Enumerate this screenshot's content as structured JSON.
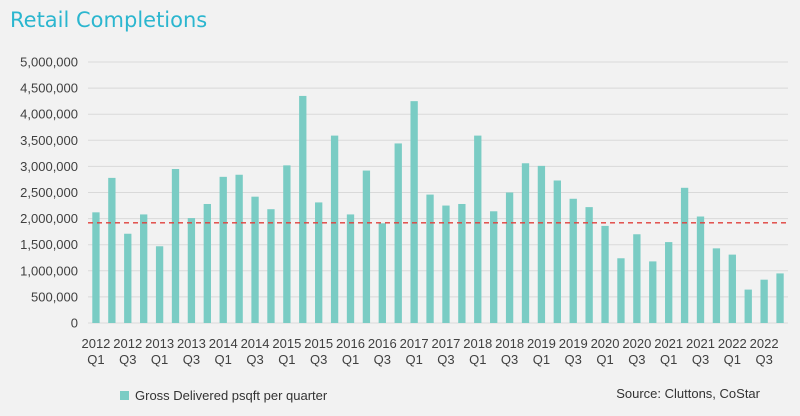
{
  "chart_data": {
    "type": "bar",
    "title": "Retail Completions",
    "categories": [
      [
        "2012",
        "Q1"
      ],
      [
        "2012",
        "Q2"
      ],
      [
        "2012",
        "Q3"
      ],
      [
        "2012",
        "Q4"
      ],
      [
        "2013",
        "Q1"
      ],
      [
        "2013",
        "Q2"
      ],
      [
        "2013",
        "Q3"
      ],
      [
        "2013",
        "Q4"
      ],
      [
        "2014",
        "Q1"
      ],
      [
        "2014",
        "Q2"
      ],
      [
        "2014",
        "Q3"
      ],
      [
        "2014",
        "Q4"
      ],
      [
        "2015",
        "Q1"
      ],
      [
        "2015",
        "Q2"
      ],
      [
        "2015",
        "Q3"
      ],
      [
        "2015",
        "Q4"
      ],
      [
        "2016",
        "Q1"
      ],
      [
        "2016",
        "Q2"
      ],
      [
        "2016",
        "Q3"
      ],
      [
        "2016",
        "Q4"
      ],
      [
        "2017",
        "Q1"
      ],
      [
        "2017",
        "Q2"
      ],
      [
        "2017",
        "Q3"
      ],
      [
        "2017",
        "Q4"
      ],
      [
        "2018",
        "Q1"
      ],
      [
        "2018",
        "Q2"
      ],
      [
        "2018",
        "Q3"
      ],
      [
        "2018",
        "Q4"
      ],
      [
        "2019",
        "Q1"
      ],
      [
        "2019",
        "Q2"
      ],
      [
        "2019",
        "Q3"
      ],
      [
        "2019",
        "Q4"
      ],
      [
        "2020",
        "Q1"
      ],
      [
        "2020",
        "Q2"
      ],
      [
        "2020",
        "Q3"
      ],
      [
        "2020",
        "Q4"
      ],
      [
        "2021",
        "Q1"
      ],
      [
        "2021",
        "Q2"
      ],
      [
        "2021",
        "Q3"
      ],
      [
        "2021",
        "Q4"
      ],
      [
        "2022",
        "Q1"
      ],
      [
        "2022",
        "Q2"
      ],
      [
        "2022",
        "Q3"
      ],
      [
        "2022",
        "Q4"
      ]
    ],
    "x_tick_labels": [
      [
        "2012",
        "Q1"
      ],
      [
        "2012",
        "Q3"
      ],
      [
        "2013",
        "Q1"
      ],
      [
        "2013",
        "Q3"
      ],
      [
        "2014",
        "Q1"
      ],
      [
        "2014",
        "Q3"
      ],
      [
        "2015",
        "Q1"
      ],
      [
        "2015",
        "Q3"
      ],
      [
        "2016",
        "Q1"
      ],
      [
        "2016",
        "Q3"
      ],
      [
        "2017",
        "Q1"
      ],
      [
        "2017",
        "Q3"
      ],
      [
        "2018",
        "Q1"
      ],
      [
        "2018",
        "Q3"
      ],
      [
        "2019",
        "Q1"
      ],
      [
        "2019",
        "Q3"
      ],
      [
        "2020",
        "Q1"
      ],
      [
        "2020",
        "Q3"
      ],
      [
        "2021",
        "Q1"
      ],
      [
        "2021",
        "Q3"
      ],
      [
        "2022",
        "Q1"
      ],
      [
        "2022",
        "Q3"
      ]
    ],
    "series": [
      {
        "name": "Gross Delivered psqft per quarter",
        "color": "#7accc4",
        "values": [
          2120000,
          2780000,
          1710000,
          2080000,
          1470000,
          2950000,
          2010000,
          2280000,
          2800000,
          2840000,
          2420000,
          2180000,
          3020000,
          4350000,
          2310000,
          3590000,
          2080000,
          2920000,
          1910000,
          3440000,
          4250000,
          2460000,
          2250000,
          2280000,
          3590000,
          2140000,
          2500000,
          3060000,
          3010000,
          2730000,
          2380000,
          2220000,
          1860000,
          1240000,
          1700000,
          1180000,
          1550000,
          2590000,
          2040000,
          1430000,
          1310000,
          640000,
          830000,
          950000
        ]
      }
    ],
    "reference_line": {
      "value": 1920000,
      "color": "#e0403c",
      "style": "dashed"
    },
    "ylim": [
      0,
      5000000
    ],
    "y_ticks": [
      0,
      500000,
      1000000,
      1500000,
      2000000,
      2500000,
      3000000,
      3500000,
      4000000,
      4500000,
      5000000
    ],
    "y_tick_labels": [
      "0",
      "500,000",
      "1,000,000",
      "1,500,000",
      "2,000,000",
      "2,500,000",
      "3,000,000",
      "3,500,000",
      "4,000,000",
      "4,500,000",
      "5,000,000"
    ],
    "grid": true,
    "legend_position": "bottom-left"
  },
  "source_text": "Source: Cluttons, CoStar"
}
